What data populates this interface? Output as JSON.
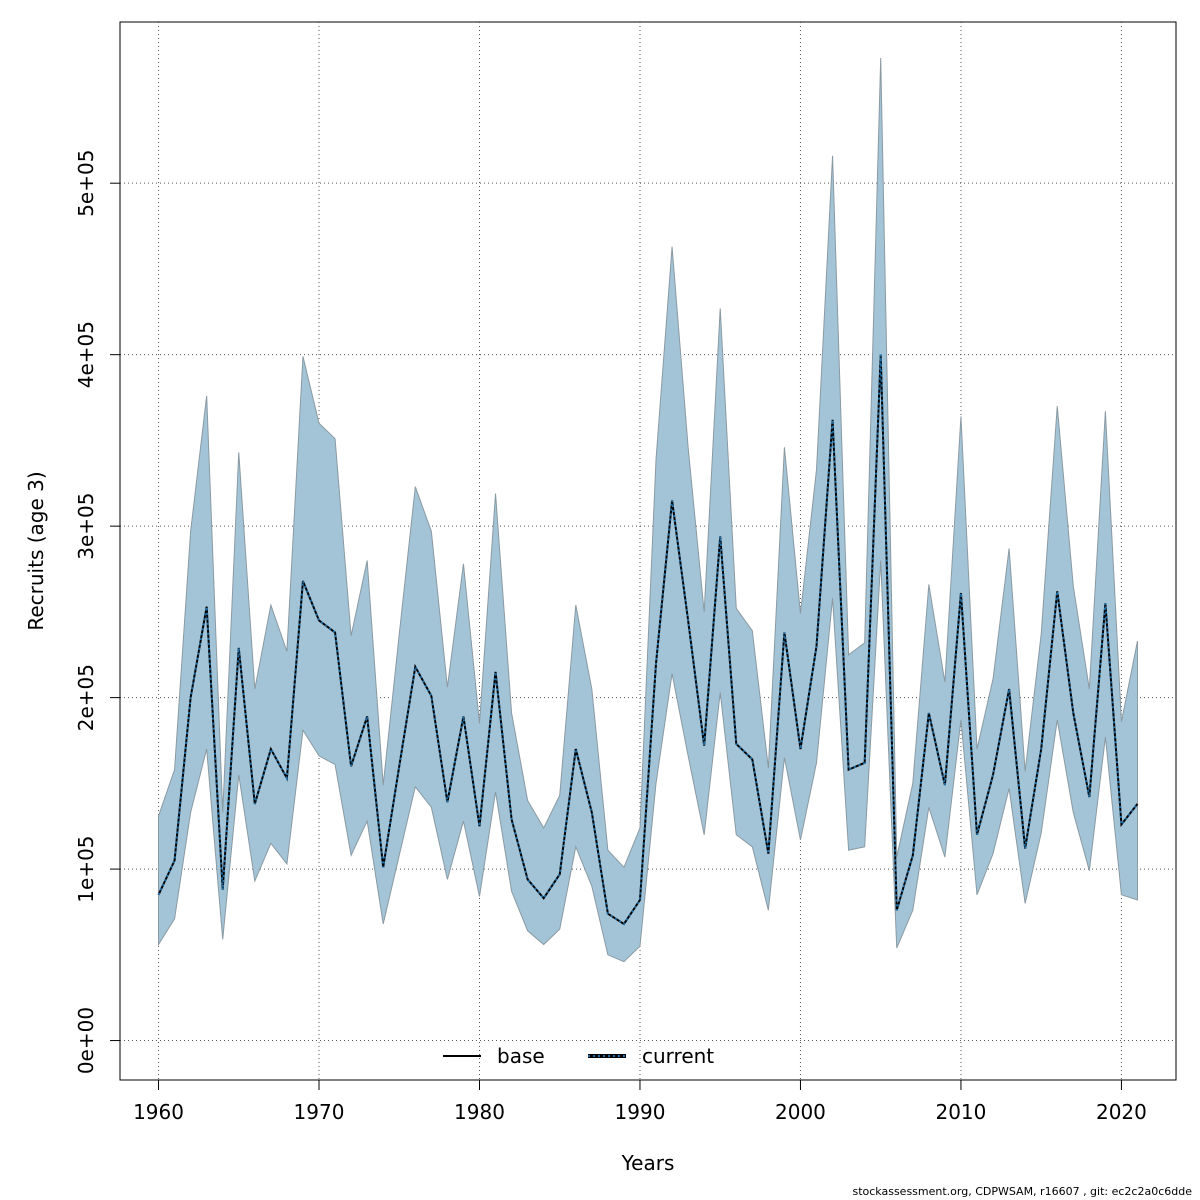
{
  "chart_data": {
    "type": "line",
    "xlabel": "Years",
    "ylabel": "Recruits (age 3)",
    "xlim": [
      1957.6,
      2023.4
    ],
    "ylim": [
      -23000,
      594000
    ],
    "grid": true,
    "x_ticks": [
      1960,
      1970,
      1980,
      1990,
      2000,
      2010,
      2020
    ],
    "y_ticks": [
      0,
      100000,
      200000,
      300000,
      400000,
      500000
    ],
    "y_tick_labels": [
      "0e+00",
      "1e+05",
      "2e+05",
      "3e+05",
      "4e+05",
      "5e+05"
    ],
    "x": [
      1960,
      1961,
      1962,
      1963,
      1964,
      1965,
      1966,
      1967,
      1968,
      1969,
      1970,
      1971,
      1972,
      1973,
      1974,
      1975,
      1976,
      1977,
      1978,
      1979,
      1980,
      1981,
      1982,
      1983,
      1984,
      1985,
      1986,
      1987,
      1988,
      1989,
      1990,
      1991,
      1992,
      1993,
      1994,
      1995,
      1996,
      1997,
      1998,
      1999,
      2000,
      2001,
      2002,
      2003,
      2004,
      2005,
      2006,
      2007,
      2008,
      2009,
      2010,
      2011,
      2012,
      2013,
      2014,
      2015,
      2016,
      2017,
      2018,
      2019,
      2020,
      2021
    ],
    "series": [
      {
        "name": "base",
        "values": [
          85000,
          105000,
          200000,
          253000,
          88000,
          229000,
          138000,
          170000,
          153000,
          268000,
          245000,
          238000,
          160000,
          189000,
          101000,
          160000,
          218000,
          201000,
          139000,
          189000,
          125000,
          215000,
          129000,
          94000,
          83000,
          97000,
          170000,
          133000,
          74000,
          68000,
          82000,
          220000,
          315000,
          245000,
          172000,
          294000,
          173000,
          164000,
          109000,
          238000,
          170000,
          230000,
          362000,
          158000,
          162000,
          400000,
          76000,
          108000,
          191000,
          149000,
          261000,
          120000,
          155000,
          205000,
          112000,
          170000,
          262000,
          191000,
          142000,
          255000,
          126000,
          138000
        ],
        "lower": [
          56000,
          71000,
          133000,
          170000,
          59000,
          155000,
          93000,
          115000,
          103000,
          181000,
          166000,
          161000,
          108000,
          128000,
          68000,
          108000,
          148000,
          136000,
          94000,
          128000,
          84000,
          145000,
          87000,
          64000,
          56000,
          65000,
          113000,
          90000,
          50000,
          46000,
          55000,
          150000,
          214000,
          166000,
          120000,
          203000,
          120000,
          113000,
          76000,
          165000,
          117000,
          162000,
          258000,
          111000,
          113000,
          280000,
          54000,
          76000,
          136000,
          107000,
          187000,
          85000,
          109000,
          147000,
          80000,
          121000,
          187000,
          133000,
          99000,
          177000,
          85000,
          82000
        ],
        "upper": [
          131000,
          158000,
          297000,
          376000,
          133000,
          343000,
          205000,
          254000,
          227000,
          399000,
          360000,
          351000,
          236000,
          280000,
          149000,
          237000,
          323000,
          297000,
          206000,
          278000,
          185000,
          319000,
          191000,
          140000,
          124000,
          143000,
          254000,
          205000,
          111000,
          101000,
          124000,
          339000,
          463000,
          346000,
          250000,
          427000,
          252000,
          239000,
          159000,
          346000,
          249000,
          333000,
          516000,
          225000,
          232000,
          573000,
          107000,
          150000,
          266000,
          209000,
          364000,
          170000,
          211000,
          287000,
          157000,
          237000,
          370000,
          265000,
          205000,
          367000,
          186000,
          233000
        ],
        "color": "#000000",
        "style": "solid"
      },
      {
        "name": "current",
        "values": [
          85000,
          105000,
          200000,
          253000,
          88000,
          229000,
          138000,
          170000,
          153000,
          268000,
          245000,
          238000,
          160000,
          189000,
          101000,
          160000,
          218000,
          201000,
          139000,
          189000,
          125000,
          215000,
          129000,
          94000,
          83000,
          97000,
          170000,
          133000,
          74000,
          68000,
          82000,
          220000,
          315000,
          245000,
          172000,
          294000,
          173000,
          164000,
          109000,
          238000,
          170000,
          230000,
          362000,
          158000,
          162000,
          400000,
          76000,
          108000,
          191000,
          149000,
          261000,
          120000,
          155000,
          205000,
          112000,
          170000,
          262000,
          191000,
          142000,
          255000,
          126000,
          138000
        ],
        "color": "#1f6fa8",
        "style": "dotted"
      }
    ],
    "band_color": "#a3c4d6",
    "legend_placement": "bottom"
  },
  "footer": "stockassessment.org, CDPWSAM, r16607 , git: ec2c2a0c6dde"
}
